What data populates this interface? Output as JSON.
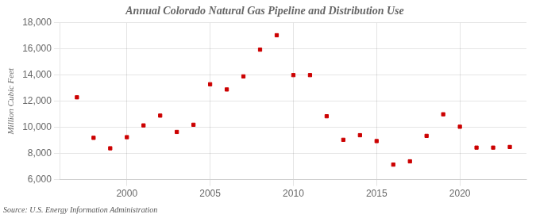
{
  "chart_data": {
    "type": "scatter",
    "title": "Annual Colorado Natural Gas Pipeline and Distribution Use",
    "y_label": "Million Cubic Feet",
    "annotations": [
      "Source: U.S. Energy Information Administration"
    ],
    "x": [
      1997,
      1998,
      1999,
      2000,
      2001,
      2002,
      2003,
      2004,
      2005,
      2006,
      2007,
      2008,
      2009,
      2010,
      2011,
      2012,
      2013,
      2014,
      2015,
      2016,
      2017,
      2018,
      2019,
      2020,
      2021,
      2022,
      2023
    ],
    "values": [
      12300,
      9200,
      8400,
      9250,
      10150,
      10900,
      9650,
      10200,
      13300,
      12900,
      13900,
      15950,
      17050,
      14000,
      14000,
      10850,
      9050,
      9400,
      8950,
      7150,
      7400,
      9350,
      11000,
      10050,
      8450,
      8450,
      8500
    ],
    "color": "#cc0000",
    "marker": "square",
    "xlim": [
      1996,
      2024
    ],
    "xticks": [
      2000,
      2005,
      2010,
      2015,
      2020
    ],
    "ylim": [
      6000,
      18000
    ],
    "yticks": [
      {
        "value": 6000,
        "label": "6,000"
      },
      {
        "value": 8000,
        "label": "8,000"
      },
      {
        "value": 10000,
        "label": "10,000"
      },
      {
        "value": 12000,
        "label": "12,000"
      },
      {
        "value": 14000,
        "label": "14,000"
      },
      {
        "value": 16000,
        "label": "16,000"
      },
      {
        "value": 18000,
        "label": "18,000"
      }
    ],
    "grid": true
  }
}
